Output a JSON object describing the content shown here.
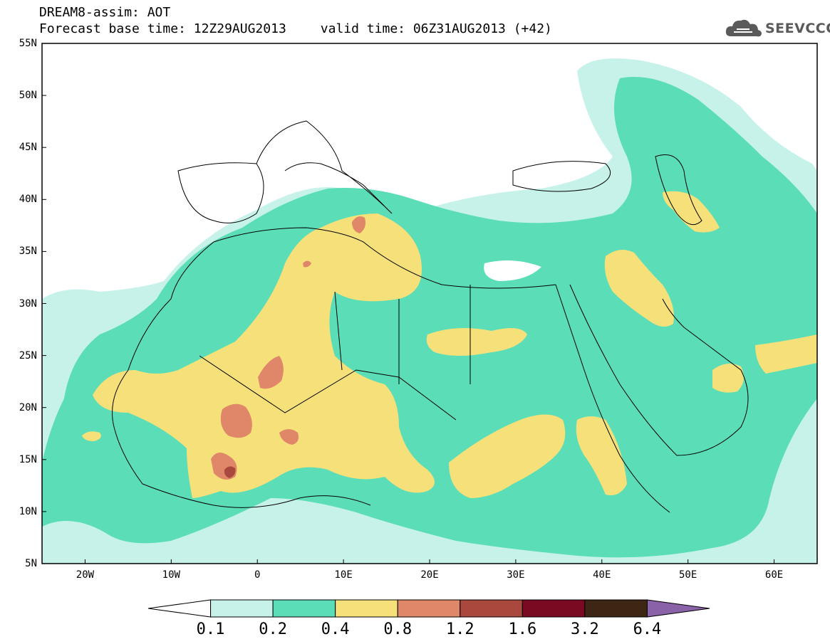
{
  "header": {
    "title": "DREAM8-assim: AOT",
    "base_time": "Forecast base time: 12Z29AUG2013",
    "valid_time": "valid time: 06Z31AUG2013 (+42)",
    "logo_text": "SEEVCCC"
  },
  "map": {
    "lat_ticks": [
      "55N",
      "50N",
      "45N",
      "40N",
      "35N",
      "30N",
      "25N",
      "20N",
      "15N",
      "10N",
      "5N"
    ],
    "lon_ticks": [
      "20W",
      "10W",
      "0",
      "10E",
      "20E",
      "30E",
      "40E",
      "50E",
      "60E"
    ],
    "extent": {
      "lon": [
        -25,
        65
      ],
      "lat": [
        5,
        55
      ]
    },
    "grid": "none"
  },
  "colorbar": {
    "labels": [
      "0.1",
      "0.2",
      "0.4",
      "0.8",
      "1.2",
      "1.6",
      "3.2",
      "6.4"
    ],
    "colors": [
      "#ffffff",
      "#c7f2ea",
      "#5bddb8",
      "#f5e07a",
      "#e0876a",
      "#a9493d",
      "#7a0a22",
      "#3d2613",
      "#8a62a8"
    ]
  },
  "colors": {
    "c1": "#c7f2ea",
    "c2": "#5bddb8",
    "c3": "#f5e07a",
    "c4": "#e0876a",
    "c5": "#a9493d"
  }
}
